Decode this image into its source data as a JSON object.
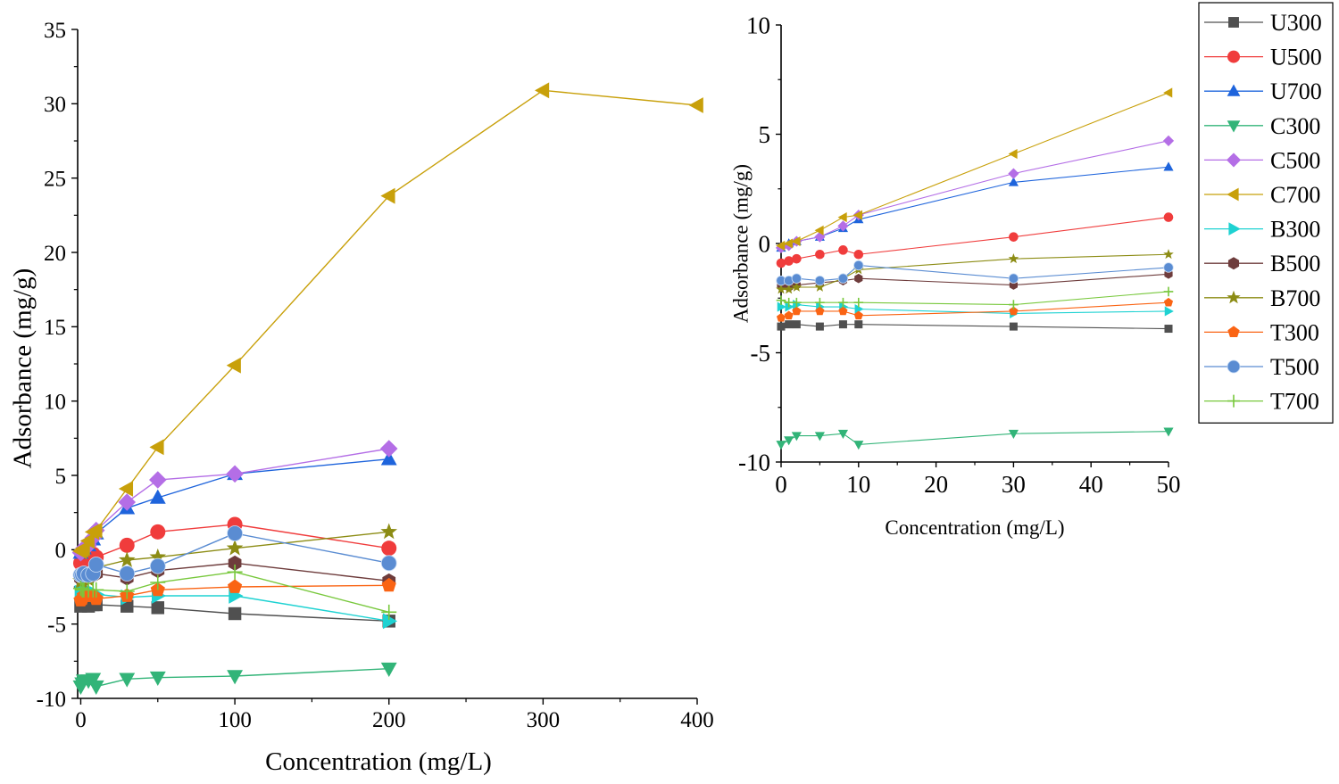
{
  "series_styles": [
    {
      "name": "U300",
      "color": "#505050",
      "marker": "square"
    },
    {
      "name": "U500",
      "color": "#f03c3c",
      "marker": "circle"
    },
    {
      "name": "U700",
      "color": "#1e64dc",
      "marker": "triangle-up"
    },
    {
      "name": "C300",
      "color": "#32b478",
      "marker": "triangle-down"
    },
    {
      "name": "C500",
      "color": "#b46ee6",
      "marker": "diamond"
    },
    {
      "name": "C700",
      "color": "#c8a00a",
      "marker": "triangle-left"
    },
    {
      "name": "B300",
      "color": "#1ed2d2",
      "marker": "triangle-right"
    },
    {
      "name": "B500",
      "color": "#6e3c3c",
      "marker": "hexagon"
    },
    {
      "name": "B700",
      "color": "#8c8c14",
      "marker": "star"
    },
    {
      "name": "T300",
      "color": "#fa6414",
      "marker": "pentagon"
    },
    {
      "name": "T500",
      "color": "#5a8cd2",
      "marker": "sphere"
    },
    {
      "name": "T700",
      "color": "#78c83c",
      "marker": "plus"
    }
  ],
  "chart_data": [
    {
      "type": "line",
      "title": "",
      "xlabel": "Concentration (mg/L)",
      "ylabel": "Adsorbance (mg/g)",
      "xlim": [
        -2,
        400
      ],
      "ylim": [
        -10,
        35
      ],
      "xticks": [
        0,
        100,
        200,
        300,
        400
      ],
      "yticks": [
        -10,
        -5,
        0,
        5,
        10,
        15,
        20,
        25,
        30,
        35
      ],
      "grid": false,
      "legend": "none",
      "series": [
        {
          "name": "U300",
          "x": [
            0,
            1,
            2,
            5,
            8,
            10,
            30,
            50,
            100,
            200
          ],
          "y": [
            -3.8,
            -3.7,
            -3.7,
            -3.8,
            -3.7,
            -3.7,
            -3.8,
            -3.9,
            -4.3,
            -4.8
          ]
        },
        {
          "name": "U500",
          "x": [
            0,
            1,
            2,
            5,
            8,
            10,
            30,
            50,
            100,
            200
          ],
          "y": [
            -0.9,
            -0.8,
            -0.7,
            -0.5,
            -0.3,
            -0.5,
            0.3,
            1.2,
            1.7,
            0.1
          ]
        },
        {
          "name": "U700",
          "x": [
            0,
            1,
            2,
            5,
            8,
            10,
            30,
            50,
            100,
            200
          ],
          "y": [
            -0.2,
            0.0,
            0.1,
            0.3,
            0.7,
            1.1,
            2.8,
            3.5,
            5.1,
            6.1
          ]
        },
        {
          "name": "C300",
          "x": [
            0,
            1,
            2,
            5,
            8,
            10,
            30,
            50,
            100,
            200
          ],
          "y": [
            -9.2,
            -9.0,
            -8.8,
            -8.8,
            -8.7,
            -9.2,
            -8.7,
            -8.6,
            -8.5,
            -8.0
          ]
        },
        {
          "name": "C500",
          "x": [
            0,
            1,
            2,
            5,
            8,
            10,
            30,
            50,
            100,
            200
          ],
          "y": [
            -0.2,
            -0.1,
            0.1,
            0.3,
            0.8,
            1.3,
            3.2,
            4.7,
            5.1,
            6.8
          ]
        },
        {
          "name": "C700",
          "x": [
            0,
            1,
            2,
            5,
            8,
            10,
            30,
            50,
            100,
            200,
            300,
            400
          ],
          "y": [
            -0.1,
            0.0,
            0.1,
            0.6,
            1.2,
            1.3,
            4.1,
            6.9,
            12.4,
            23.8,
            30.9,
            29.9
          ]
        },
        {
          "name": "B300",
          "x": [
            0,
            1,
            2,
            5,
            8,
            10,
            30,
            50,
            100,
            200
          ],
          "y": [
            -2.9,
            -2.9,
            -2.8,
            -2.9,
            -2.9,
            -3.0,
            -3.2,
            -3.1,
            -3.1,
            -4.8
          ]
        },
        {
          "name": "B500",
          "x": [
            0,
            1,
            2,
            5,
            8,
            10,
            30,
            50,
            100,
            200
          ],
          "y": [
            -1.9,
            -2.0,
            -1.9,
            -1.8,
            -1.7,
            -1.6,
            -1.9,
            -1.4,
            -0.9,
            -2.1
          ]
        },
        {
          "name": "B700",
          "x": [
            0,
            1,
            2,
            5,
            8,
            10,
            30,
            50,
            100,
            200
          ],
          "y": [
            -2.1,
            -2.1,
            -2.0,
            -2.0,
            -1.6,
            -1.2,
            -0.7,
            -0.5,
            0.1,
            1.2
          ]
        },
        {
          "name": "T300",
          "x": [
            0,
            1,
            2,
            5,
            8,
            10,
            30,
            50,
            100,
            200
          ],
          "y": [
            -3.4,
            -3.3,
            -3.1,
            -3.1,
            -3.1,
            -3.3,
            -3.1,
            -2.7,
            -2.5,
            -2.4
          ]
        },
        {
          "name": "T500",
          "x": [
            0,
            1,
            2,
            5,
            8,
            10,
            30,
            50,
            100,
            200
          ],
          "y": [
            -1.7,
            -1.7,
            -1.6,
            -1.7,
            -1.6,
            -1.0,
            -1.6,
            -1.1,
            1.1,
            -0.9
          ]
        },
        {
          "name": "T700",
          "x": [
            0,
            1,
            2,
            5,
            8,
            10,
            30,
            50,
            100,
            200
          ],
          "y": [
            -2.6,
            -2.7,
            -2.7,
            -2.7,
            -2.7,
            -2.7,
            -2.8,
            -2.2,
            -1.5,
            -4.2
          ]
        }
      ]
    },
    {
      "type": "line",
      "title": "",
      "xlabel": "Concentration (mg/L)",
      "ylabel": "Adsorbance (mg/g)",
      "xlim": [
        0,
        50
      ],
      "ylim": [
        -10,
        10
      ],
      "xticks": [
        0,
        10,
        20,
        30,
        40,
        50
      ],
      "yticks": [
        -10,
        -5,
        0,
        5,
        10
      ],
      "grid": false,
      "legend": "right",
      "series": [
        {
          "name": "U300",
          "x": [
            0,
            1,
            2,
            5,
            8,
            10,
            30,
            50
          ],
          "y": [
            -3.8,
            -3.7,
            -3.7,
            -3.8,
            -3.7,
            -3.7,
            -3.8,
            -3.9
          ]
        },
        {
          "name": "U500",
          "x": [
            0,
            1,
            2,
            5,
            8,
            10,
            30,
            50
          ],
          "y": [
            -0.9,
            -0.8,
            -0.7,
            -0.5,
            -0.3,
            -0.5,
            0.3,
            1.2
          ]
        },
        {
          "name": "U700",
          "x": [
            0,
            1,
            2,
            5,
            8,
            10,
            30,
            50
          ],
          "y": [
            -0.2,
            0.0,
            0.1,
            0.3,
            0.7,
            1.1,
            2.8,
            3.5
          ]
        },
        {
          "name": "C300",
          "x": [
            0,
            1,
            2,
            5,
            8,
            10,
            30,
            50
          ],
          "y": [
            -9.2,
            -9.0,
            -8.8,
            -8.8,
            -8.7,
            -9.2,
            -8.7,
            -8.6
          ]
        },
        {
          "name": "C500",
          "x": [
            0,
            1,
            2,
            5,
            8,
            10,
            30,
            50
          ],
          "y": [
            -0.2,
            -0.1,
            0.1,
            0.3,
            0.8,
            1.3,
            3.2,
            4.7
          ]
        },
        {
          "name": "C700",
          "x": [
            0,
            1,
            2,
            5,
            8,
            10,
            30,
            50
          ],
          "y": [
            -0.1,
            0.0,
            0.1,
            0.6,
            1.2,
            1.3,
            4.1,
            6.9
          ]
        },
        {
          "name": "B300",
          "x": [
            0,
            1,
            2,
            5,
            8,
            10,
            30,
            50
          ],
          "y": [
            -2.9,
            -2.9,
            -2.8,
            -2.9,
            -2.9,
            -3.0,
            -3.2,
            -3.1
          ]
        },
        {
          "name": "B500",
          "x": [
            0,
            1,
            2,
            5,
            8,
            10,
            30,
            50
          ],
          "y": [
            -1.9,
            -2.0,
            -1.9,
            -1.8,
            -1.7,
            -1.6,
            -1.9,
            -1.4
          ]
        },
        {
          "name": "B700",
          "x": [
            0,
            1,
            2,
            5,
            8,
            10,
            30,
            50
          ],
          "y": [
            -2.1,
            -2.1,
            -2.0,
            -2.0,
            -1.6,
            -1.2,
            -0.7,
            -0.5
          ]
        },
        {
          "name": "T300",
          "x": [
            0,
            1,
            2,
            5,
            8,
            10,
            30,
            50
          ],
          "y": [
            -3.4,
            -3.3,
            -3.1,
            -3.1,
            -3.1,
            -3.3,
            -3.1,
            -2.7
          ]
        },
        {
          "name": "T500",
          "x": [
            0,
            1,
            2,
            5,
            8,
            10,
            30,
            50
          ],
          "y": [
            -1.7,
            -1.7,
            -1.6,
            -1.7,
            -1.6,
            -1.0,
            -1.6,
            -1.1
          ]
        },
        {
          "name": "T700",
          "x": [
            0,
            1,
            2,
            5,
            8,
            10,
            30,
            50
          ],
          "y": [
            -2.6,
            -2.7,
            -2.7,
            -2.7,
            -2.7,
            -2.7,
            -2.8,
            -2.2
          ]
        }
      ]
    }
  ]
}
